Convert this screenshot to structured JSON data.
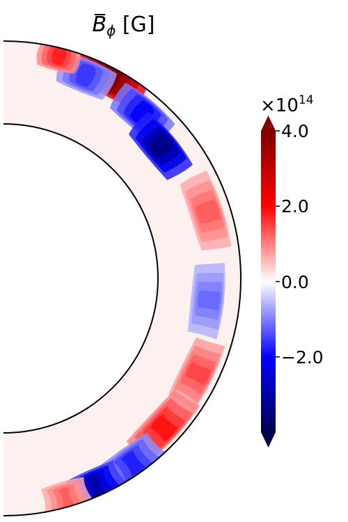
{
  "chart_data": {
    "type": "heatmap",
    "title_symbol": "B",
    "title_subscript": "ϕ",
    "title_unit": "[G]",
    "projection": "meridional half-shell (spherical shell slice)",
    "colormap": "seismic",
    "colorbar": {
      "offset_base": "×10",
      "offset_exponent": "14",
      "range": [
        -4.0,
        4.0
      ],
      "extend": "both",
      "ticks": [
        {
          "value": 4.0,
          "label": "4.0"
        },
        {
          "value": 2.0,
          "label": "2.0"
        },
        {
          "value": 0.0,
          "label": "0.0"
        },
        {
          "value": -2.0,
          "label": "−2.0"
        }
      ]
    },
    "features": [
      {
        "colatitude_deg": 28,
        "radius_frac": 0.88,
        "value": 4.2,
        "spread": 9
      },
      {
        "colatitude_deg": 22,
        "radius_frac": 0.78,
        "value": -1.6,
        "spread": 7
      },
      {
        "colatitude_deg": 14,
        "radius_frac": 0.93,
        "value": 1.8,
        "spread": 5
      },
      {
        "colatitude_deg": 40,
        "radius_frac": 0.74,
        "value": -2.1,
        "spread": 8
      },
      {
        "colatitude_deg": 50,
        "radius_frac": 0.62,
        "value": -3.4,
        "spread": 9
      },
      {
        "colatitude_deg": 72,
        "radius_frac": 0.73,
        "value": 1.3,
        "spread": 10
      },
      {
        "colatitude_deg": 96,
        "radius_frac": 0.63,
        "value": -1.2,
        "spread": 10
      },
      {
        "colatitude_deg": 116,
        "radius_frac": 0.75,
        "value": 1.5,
        "spread": 9
      },
      {
        "colatitude_deg": 133,
        "radius_frac": 0.78,
        "value": 1.9,
        "spread": 10
      },
      {
        "colatitude_deg": 145,
        "radius_frac": 0.86,
        "value": -1.8,
        "spread": 8
      },
      {
        "colatitude_deg": 156,
        "radius_frac": 0.88,
        "value": -3.0,
        "spread": 7
      },
      {
        "colatitude_deg": 164,
        "radius_frac": 0.9,
        "value": 1.3,
        "spread": 6
      }
    ]
  }
}
